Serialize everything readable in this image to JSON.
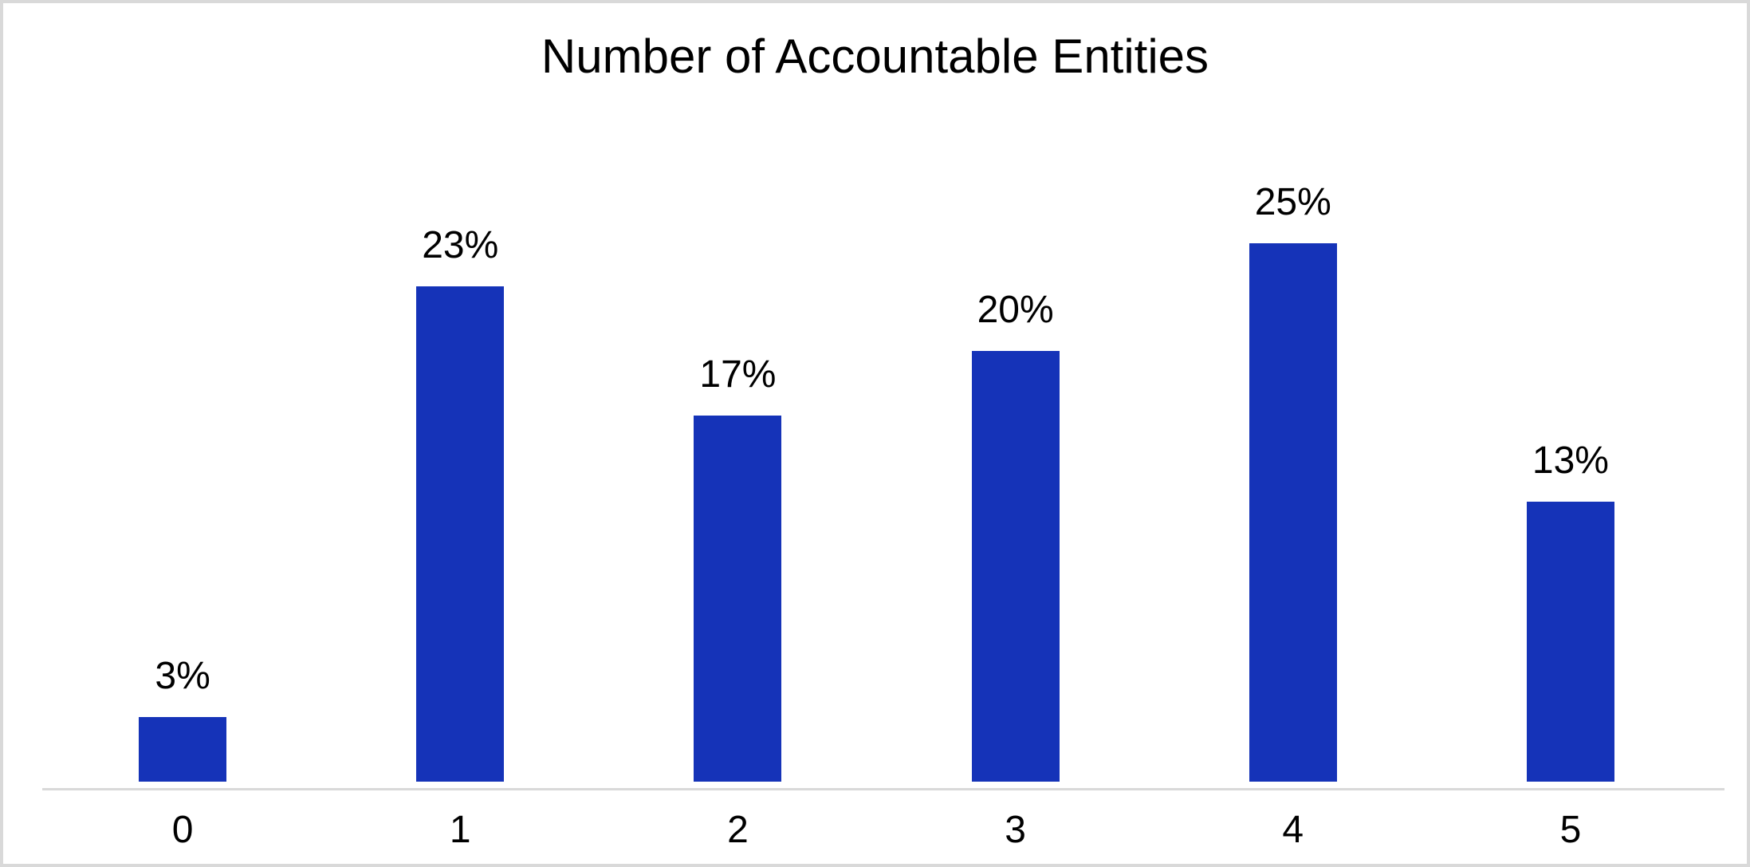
{
  "canvas": {
    "background": "#FFFFFF",
    "frame_color": "#D9D9D9"
  },
  "chart_data": {
    "type": "bar",
    "title": "Number of Accountable Entities",
    "categories": [
      "0",
      "1",
      "2",
      "3",
      "4",
      "5"
    ],
    "values": [
      3,
      23,
      17,
      20,
      25,
      13
    ],
    "value_labels": [
      "3%",
      "23%",
      "17%",
      "20%",
      "25%",
      "13%"
    ],
    "unit": "percent",
    "xlabel": "",
    "ylabel": "",
    "ylim": [
      0,
      27
    ],
    "grid": false,
    "legend": false,
    "data_label_position": "outside-end",
    "bar_color": "#1533B8",
    "axis_line_color": "#D9D9D9",
    "text_color": "#000000"
  }
}
